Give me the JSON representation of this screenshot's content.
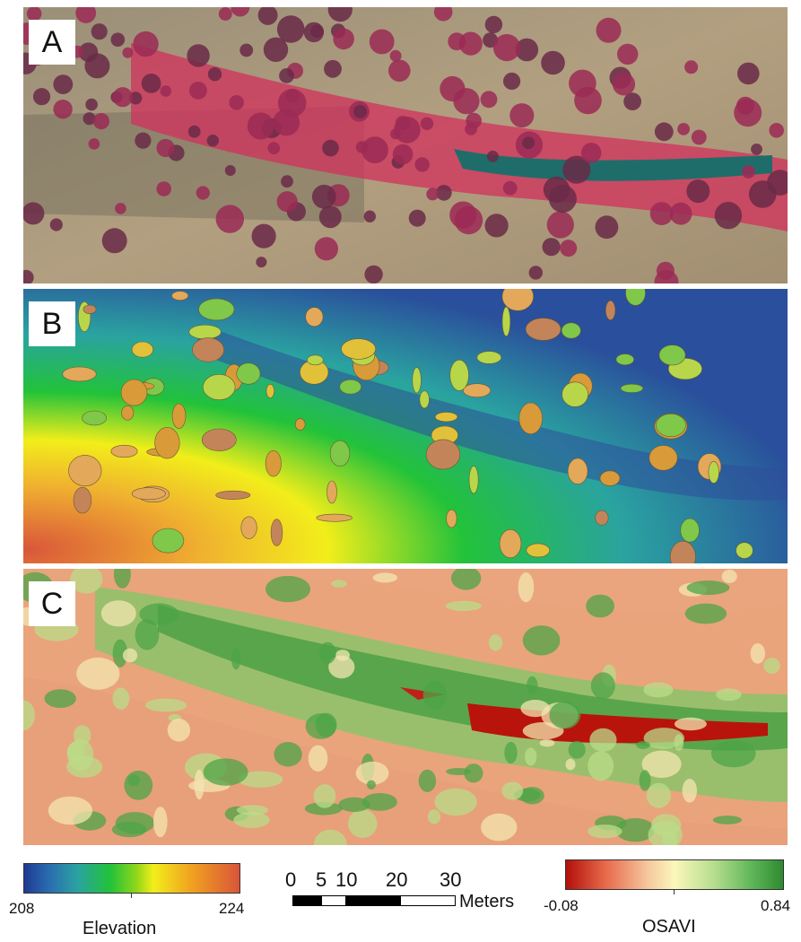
{
  "panels": [
    {
      "label": "A"
    },
    {
      "label": "B"
    },
    {
      "label": "C"
    }
  ],
  "legend": {
    "elevation": {
      "title": "Elevation",
      "min": "208",
      "max": "224"
    },
    "scale": {
      "labels": [
        "0",
        "5",
        "10",
        "20",
        "30"
      ],
      "unit": "Meters"
    },
    "osavi": {
      "title": "OSAVI",
      "min": "-0.08",
      "max": "0.84"
    }
  },
  "colors": {
    "vegetation_false_color": "#c8264f",
    "water": "#1f6d6a",
    "elevation_low": "#1f3a93",
    "elevation_high": "#d9553a",
    "osavi_low": "#b2100a",
    "osavi_high": "#2d8a2f"
  }
}
